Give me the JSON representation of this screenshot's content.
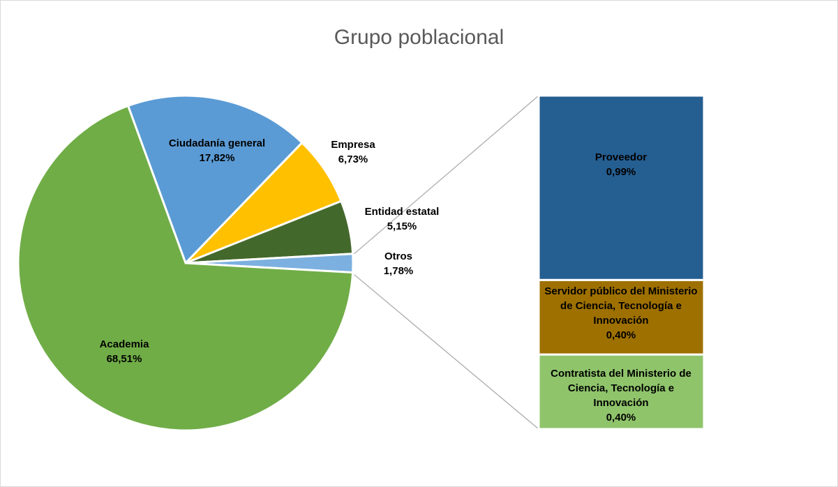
{
  "chart_data": {
    "type": "pie",
    "title": "Grupo poblacional",
    "categories": [
      "Ciudadanía general",
      "Empresa",
      "Entidad estatal",
      "Otros",
      "Academia"
    ],
    "values": [
      17.82,
      6.73,
      5.15,
      1.78,
      68.51
    ],
    "value_labels": [
      "17,82%",
      "6,73%",
      "5,15%",
      "1,78%",
      "68,51%"
    ],
    "colors": [
      "#5b9bd5",
      "#ffc000",
      "#43682b",
      "#7cb0e0",
      "#70ad47"
    ],
    "breakdown": {
      "type": "bar",
      "categories": [
        "Proveedor",
        "Servidor público del Ministerio de Ciencia, Tecnología e Innovación",
        "Contratista del Ministerio de Ciencia, Tecnología e Innovación"
      ],
      "values": [
        0.99,
        0.4,
        0.4
      ],
      "value_labels": [
        "0,99%",
        "0,40%",
        "0,40%"
      ],
      "colors": [
        "#255e91",
        "#9e7000",
        "#8fc46b"
      ]
    }
  }
}
